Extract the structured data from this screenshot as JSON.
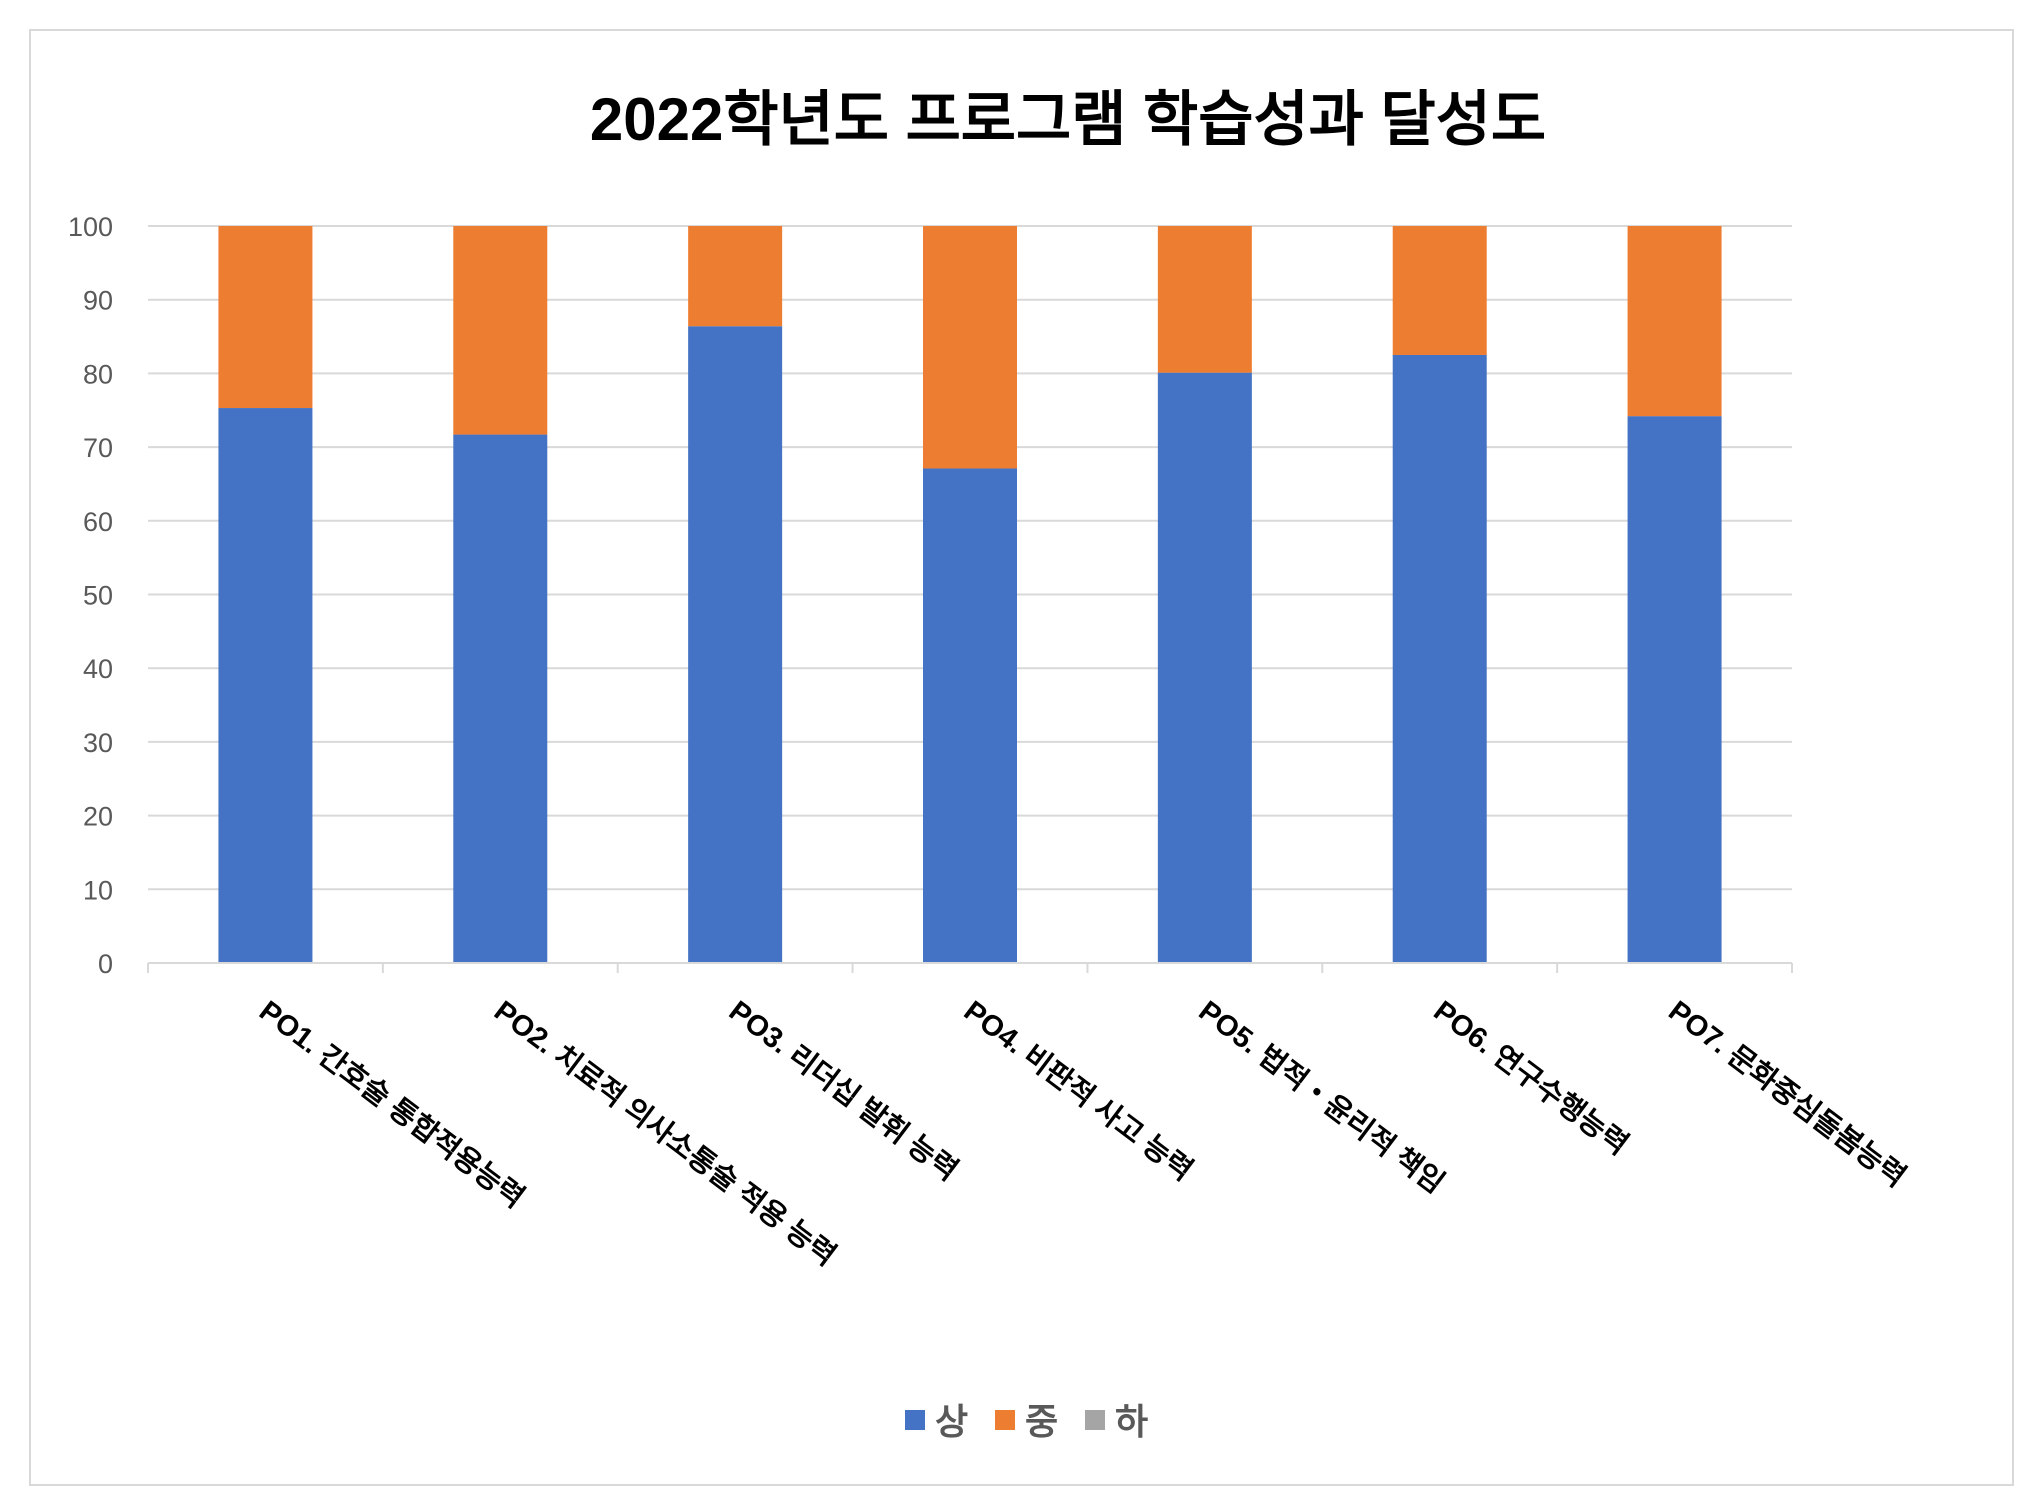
{
  "chart_data": {
    "type": "bar",
    "stacked": true,
    "title": "2022학년도 프로그램 학습성과 달성도",
    "xlabel": "",
    "ylabel": "",
    "ylim": [
      0,
      100
    ],
    "yticks": [
      0,
      10,
      20,
      30,
      40,
      50,
      60,
      70,
      80,
      90,
      100
    ],
    "grid": true,
    "legend_position": "bottom",
    "categories": [
      "PO1. 간호술 통합적용능력",
      "PO2. 치료적 의사소통술 적용 능력",
      "PO3. 리더십 발휘 능력",
      "PO4. 비판적 사고 능력",
      "PO5. 법적・윤리적 책임",
      "PO6. 연구수행능력",
      "PO7. 문화중심돌봄능력"
    ],
    "series": [
      {
        "name": "상",
        "color": "#4472C4",
        "values": [
          75.3,
          71.7,
          86.4,
          67.1,
          80.1,
          82.5,
          74.2
        ]
      },
      {
        "name": "중",
        "color": "#ED7D31",
        "values": [
          24.7,
          28.3,
          13.6,
          32.9,
          19.9,
          17.5,
          25.8
        ]
      },
      {
        "name": "하",
        "color": "#A5A5A5",
        "values": [
          0,
          0,
          0,
          0,
          0,
          0,
          0
        ]
      }
    ]
  }
}
